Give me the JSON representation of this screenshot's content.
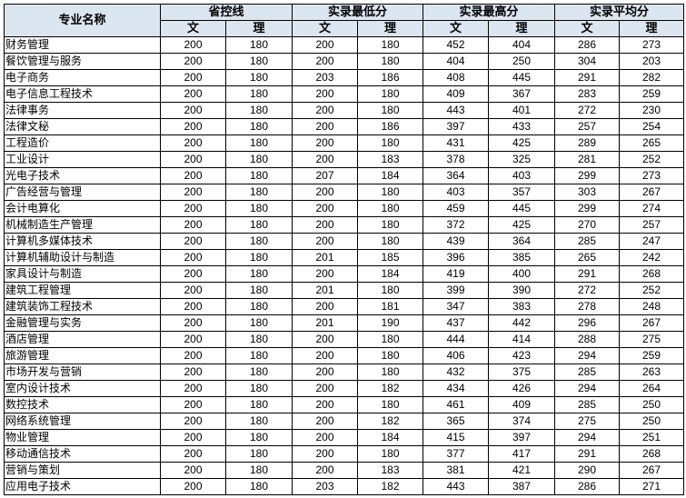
{
  "header": {
    "major": "专业名称",
    "groups": [
      "省控线",
      "实录最低分",
      "实录最高分",
      "实录平均分"
    ],
    "sub": [
      "文",
      "理"
    ]
  },
  "colors": {
    "header_bg": "#dce6f1",
    "border": "#000000"
  },
  "rows": [
    [
      "财务管理",
      200,
      180,
      200,
      180,
      452,
      404,
      286,
      273
    ],
    [
      "餐饮管理与服务",
      200,
      180,
      200,
      180,
      404,
      250,
      304,
      203
    ],
    [
      "电子商务",
      200,
      180,
      203,
      186,
      408,
      445,
      291,
      282
    ],
    [
      "电子信息工程技术",
      200,
      180,
      200,
      180,
      409,
      367,
      283,
      259
    ],
    [
      "法律事务",
      200,
      180,
      200,
      180,
      443,
      401,
      272,
      230
    ],
    [
      "法律文秘",
      200,
      180,
      200,
      186,
      397,
      433,
      257,
      254
    ],
    [
      "工程造价",
      200,
      180,
      200,
      180,
      431,
      425,
      289,
      265
    ],
    [
      "工业设计",
      200,
      180,
      200,
      183,
      378,
      325,
      281,
      252
    ],
    [
      "光电子技术",
      200,
      180,
      207,
      184,
      364,
      403,
      299,
      273
    ],
    [
      "广告经营与管理",
      200,
      180,
      200,
      180,
      403,
      357,
      303,
      267
    ],
    [
      "会计电算化",
      200,
      180,
      200,
      180,
      459,
      445,
      299,
      274
    ],
    [
      "机械制造生产管理",
      200,
      180,
      200,
      180,
      372,
      425,
      270,
      257
    ],
    [
      "计算机多媒体技术",
      200,
      180,
      200,
      180,
      439,
      364,
      285,
      247
    ],
    [
      "计算机辅助设计与制造",
      200,
      180,
      201,
      185,
      396,
      385,
      265,
      242
    ],
    [
      "家具设计与制造",
      200,
      180,
      200,
      184,
      419,
      400,
      291,
      268
    ],
    [
      "建筑工程管理",
      200,
      180,
      201,
      180,
      399,
      390,
      272,
      252
    ],
    [
      "建筑装饰工程技术",
      200,
      180,
      200,
      181,
      347,
      383,
      278,
      248
    ],
    [
      "金融管理与实务",
      200,
      180,
      201,
      190,
      437,
      442,
      296,
      267
    ],
    [
      "酒店管理",
      200,
      180,
      200,
      180,
      444,
      414,
      288,
      275
    ],
    [
      "旅游管理",
      200,
      180,
      200,
      180,
      406,
      423,
      294,
      259
    ],
    [
      "市场开发与营销",
      200,
      180,
      200,
      180,
      432,
      375,
      285,
      263
    ],
    [
      "室内设计技术",
      200,
      180,
      200,
      182,
      434,
      426,
      294,
      264
    ],
    [
      "数控技术",
      200,
      180,
      200,
      180,
      461,
      409,
      285,
      250
    ],
    [
      "网络系统管理",
      200,
      180,
      200,
      182,
      365,
      374,
      275,
      250
    ],
    [
      "物业管理",
      200,
      180,
      200,
      184,
      415,
      397,
      294,
      251
    ],
    [
      "移动通信技术",
      200,
      180,
      200,
      180,
      377,
      417,
      291,
      268
    ],
    [
      "营销与策划",
      200,
      180,
      200,
      183,
      381,
      421,
      290,
      267
    ],
    [
      "应用电子技术",
      200,
      180,
      203,
      182,
      443,
      387,
      286,
      271
    ]
  ]
}
